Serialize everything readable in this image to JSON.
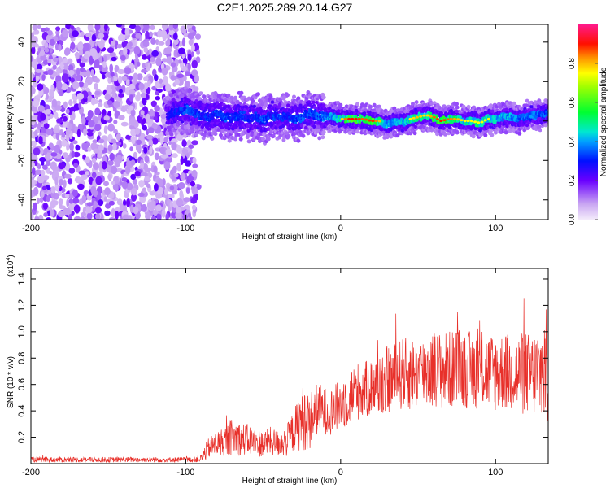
{
  "chart_data": [
    {
      "type": "heatmap",
      "title": "C2E1.2025.289.20.14.G27",
      "xlabel": "Height of straight line (km)",
      "ylabel": "Frequency (Hz)",
      "xlim": [
        -200,
        134
      ],
      "ylim": [
        -50,
        49
      ],
      "xticks": [
        -200,
        -100,
        0,
        100
      ],
      "yticks": [
        -40,
        -20,
        0,
        20,
        40
      ],
      "xtick_labels": [
        "-200",
        "-100",
        "0",
        "100"
      ],
      "ytick_labels": [
        "-40",
        "-20",
        "0",
        "20",
        "40"
      ],
      "noise_region_x": [
        -200,
        -92
      ],
      "signal_start_x": -112,
      "track": {
        "x": [
          -112,
          -105,
          -100,
          -95,
          -90,
          -85,
          -80,
          -75,
          -70,
          -65,
          -60,
          -55,
          -50,
          -45,
          -40,
          -35,
          -30,
          -25,
          -20,
          -15,
          -10,
          -5,
          0,
          5,
          10,
          15,
          20,
          25,
          30,
          35,
          40,
          45,
          50,
          55,
          60,
          65,
          70,
          75,
          80,
          85,
          90,
          95,
          100,
          105,
          110,
          115,
          120,
          125,
          130,
          134
        ],
        "freq_hz": [
          3,
          5,
          6,
          4,
          3,
          2,
          4,
          2,
          1,
          3,
          1,
          2,
          0,
          3,
          2,
          2,
          1,
          2,
          4,
          3,
          2,
          2,
          1,
          1,
          1,
          1,
          0,
          0,
          -2,
          0,
          -1,
          1,
          2,
          3,
          2,
          0,
          1,
          1,
          0,
          0,
          -1,
          1,
          1,
          2,
          2,
          1,
          2,
          3,
          3,
          4
        ],
        "peak_amplitude": [
          0.4,
          0.45,
          0.5,
          0.5,
          0.45,
          0.45,
          0.5,
          0.5,
          0.45,
          0.5,
          0.45,
          0.45,
          0.5,
          0.45,
          0.5,
          0.45,
          0.5,
          0.5,
          0.5,
          0.5,
          0.55,
          0.6,
          0.7,
          0.85,
          0.85,
          0.8,
          0.85,
          0.75,
          0.6,
          0.6,
          0.65,
          0.7,
          0.75,
          0.7,
          0.8,
          0.85,
          0.8,
          0.75,
          0.7,
          0.7,
          0.7,
          0.7,
          0.65,
          0.6,
          0.6,
          0.55,
          0.55,
          0.55,
          0.5,
          0.5
        ]
      },
      "colorbar": {
        "label": "Normalized spectral amplitude",
        "range": [
          0,
          1
        ],
        "ticks": [
          0.0,
          0.2,
          0.4,
          0.6,
          0.8
        ],
        "tick_labels": [
          "0.0",
          "0.2",
          "0.4",
          "0.6",
          "0.8"
        ]
      }
    },
    {
      "type": "line",
      "xlabel": "Height of straight line (km)",
      "ylabel": "SNR (10 * v/v)",
      "y_multiplier_label": "(x10",
      "y_multiplier_exponent": "4",
      "y_multiplier_close": ")",
      "xlim": [
        -200,
        134
      ],
      "ylim": [
        0,
        1.48
      ],
      "xticks": [
        -200,
        -100,
        0,
        100
      ],
      "yticks": [
        0.2,
        0.4,
        0.6,
        0.8,
        1.0,
        1.2,
        1.4
      ],
      "xtick_labels": [
        "-200",
        "-100",
        "0",
        "100"
      ],
      "ytick_labels": [
        "0.2",
        "0.4",
        "0.6",
        "0.8",
        "1.0",
        "1.2",
        "1.4"
      ],
      "series": [
        {
          "name": "SNR",
          "color": "#e8302a",
          "x": [
            -200,
            -190,
            -180,
            -170,
            -160,
            -150,
            -140,
            -130,
            -120,
            -110,
            -100,
            -95,
            -90,
            -88,
            -85,
            -80,
            -75,
            -70,
            -65,
            -60,
            -55,
            -50,
            -45,
            -40,
            -35,
            -30,
            -25,
            -20,
            -15,
            -10,
            -5,
            0,
            5,
            10,
            15,
            20,
            25,
            30,
            35,
            40,
            45,
            50,
            55,
            60,
            65,
            70,
            75,
            80,
            85,
            90,
            95,
            100,
            105,
            110,
            115,
            120,
            125,
            130,
            134
          ],
          "y": [
            0.03,
            0.03,
            0.03,
            0.03,
            0.03,
            0.03,
            0.03,
            0.03,
            0.03,
            0.03,
            0.03,
            0.03,
            0.04,
            0.08,
            0.12,
            0.15,
            0.17,
            0.2,
            0.19,
            0.18,
            0.16,
            0.15,
            0.17,
            0.15,
            0.17,
            0.25,
            0.35,
            0.32,
            0.42,
            0.4,
            0.4,
            0.45,
            0.5,
            0.55,
            0.55,
            0.58,
            0.6,
            0.63,
            0.66,
            0.68,
            0.68,
            0.69,
            0.7,
            0.72,
            0.7,
            0.71,
            0.73,
            0.72,
            0.7,
            0.72,
            0.7,
            0.69,
            0.7,
            0.68,
            0.67,
            0.69,
            0.68,
            0.7,
            0.72
          ],
          "noise_amplitude": [
            0.02,
            0.02,
            0.02,
            0.02,
            0.02,
            0.02,
            0.02,
            0.02,
            0.02,
            0.02,
            0.02,
            0.02,
            0.03,
            0.06,
            0.08,
            0.1,
            0.11,
            0.14,
            0.13,
            0.12,
            0.11,
            0.1,
            0.11,
            0.1,
            0.12,
            0.16,
            0.25,
            0.22,
            0.2,
            0.18,
            0.18,
            0.2,
            0.22,
            0.22,
            0.22,
            0.22,
            0.24,
            0.26,
            0.26,
            0.28,
            0.28,
            0.28,
            0.28,
            0.3,
            0.3,
            0.3,
            0.3,
            0.3,
            0.3,
            0.3,
            0.3,
            0.3,
            0.3,
            0.3,
            0.32,
            0.32,
            0.34,
            0.4,
            0.5
          ]
        }
      ]
    }
  ]
}
